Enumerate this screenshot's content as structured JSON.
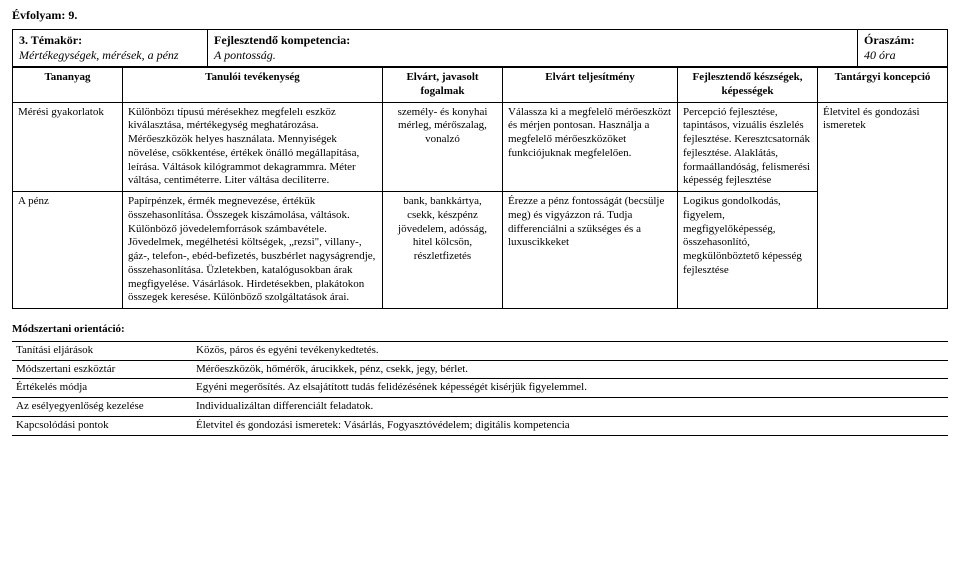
{
  "grade": "Évfolyam: 9.",
  "header": {
    "topic_label": "3. Témakör:",
    "topic_value": "Mértékegységek, mérések, a pénz",
    "comp_label": "Fejlesztendő kompetencia:",
    "comp_value": "A pontosság.",
    "hours_label": "Óraszám:",
    "hours_value": "40 óra"
  },
  "columns": {
    "c1": "Tananyag",
    "c2": "Tanulói tevékenység",
    "c3": "Elvárt, javasolt fogalmak",
    "c4": "Elvárt teljesítmény",
    "c5": "Fejlesztendő készségek, képességek",
    "c6": "Tantárgyi koncepció"
  },
  "rows": [
    {
      "c1": "Mérési gyakorlatok",
      "c2": "Különbözı típusú mérésekhez megfelelı eszköz kiválasztása, mértékegység meghatározása. Mérőeszközök helyes használata. Mennyiségek növelése, csökkentése, értékek önálló megállapítása, leírása. Váltások kilógrammot dekagrammra. Méter váltása, centiméterre. Liter váltása deciliterre.",
      "c3": "személy- és konyhai mérleg, mérőszalag, vonalzó",
      "c4": "Válassza ki a megfelelő mérőeszközt és mérjen pontosan. Használja a megfelelő mérőeszközöket funkciójuknak megfelelően.",
      "c5": "Percepció fejlesztése, tapintásos, vizuális észlelés fejlesztése. Keresztcsatornák fejlesztése. Alaklátás, formaállandóság, felismerési képesség fejlesztése",
      "c6": "Életvitel és gondozási ismeretek"
    },
    {
      "c1": "A pénz",
      "c2": "Papírpénzek, érmék megnevezése, értékük összehasonlítása. Összegek kiszámolása, váltások. Különböző jövedelemforrások számbavétele. Jövedelmek, megélhetési költségek, „rezsi\", villany-, gáz-, telefon-, ebéd-befizetés, buszbérlet nagyságrendje, összehasonlítása. Üzletekben, katalógusokban árak megfigyelése. Vásárlások. Hirdetésekben, plakátokon összegek keresése. Különböző szolgáltatások árai.",
      "c3": "bank, bankkártya, csekk, készpénz jövedelem, adósság, hitel kölcsön, részletfizetés",
      "c4": "Érezze a pénz fontosságát (becsülje meg) és vigyázzon rá. Tudja differenciálni a szükséges és a luxuscikkeket",
      "c5": "Logikus gondolkodás, figyelem, megfigyelőképesség, összehasonlító, megkülönböztető képesség fejlesztése",
      "c6": ""
    }
  ],
  "footer": {
    "heading": "Módszertani orientáció:",
    "rows": [
      {
        "k": "Tanítási eljárások",
        "v": "Közös, páros és egyéni tevékenykedtetés."
      },
      {
        "k": "Módszertani eszköztár",
        "v": "Mérőeszközök, hőmérők,  árucikkek, pénz, csekk, jegy, bérlet."
      },
      {
        "k": "Értékelés módja",
        "v": "Egyéni megerősítés. Az elsajátított tudás felidézésének képességét kisérjük figyelemmel."
      },
      {
        "k": "Az esélyegyenlőség kezelése",
        "v": "Individualizáltan differenciált feladatok."
      },
      {
        "k": "Kapcsolódási pontok",
        "v": "Életvitel és gondozási ismeretek: Vásárlás, Fogyasztóvédelem; digitális kompetencia"
      }
    ]
  },
  "layout": {
    "col_widths": [
      "110px",
      "260px",
      "120px",
      "175px",
      "140px",
      "auto"
    ],
    "header_col_widths": [
      "195px",
      "auto",
      "90px"
    ]
  }
}
